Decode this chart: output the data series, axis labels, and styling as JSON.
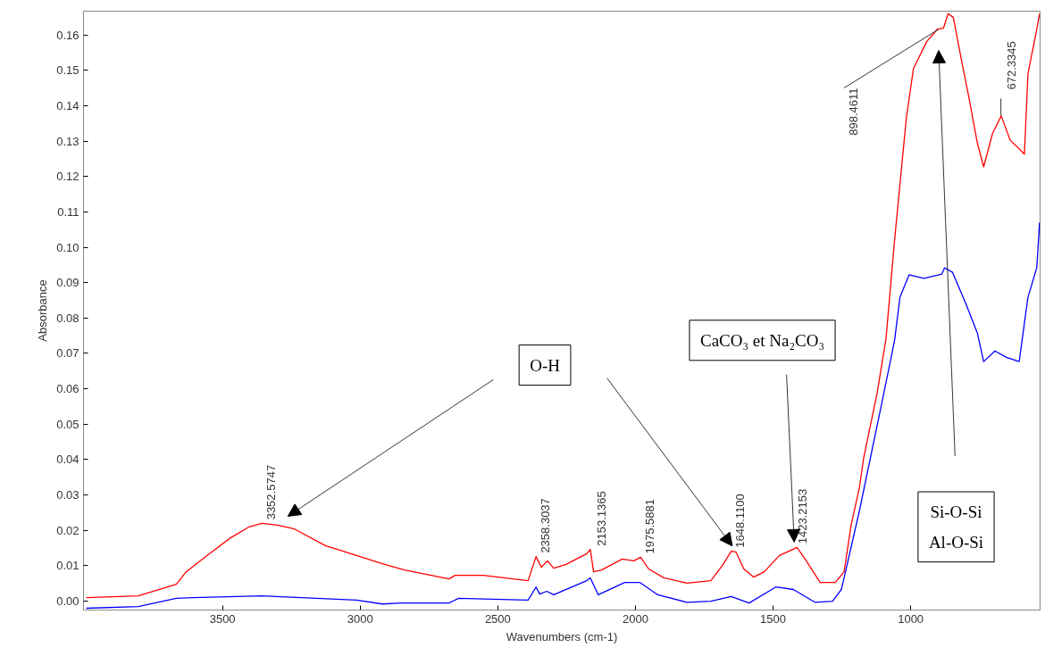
{
  "chart_data": {
    "type": "line",
    "xlabel": "Wavenumbers (cm-1)",
    "ylabel": "Absorbance",
    "xlim": [
      4005,
      530
    ],
    "xticks": [
      3500,
      3000,
      2500,
      2000,
      1500,
      1000
    ],
    "ylim": [
      -0.0025,
      0.1667
    ],
    "yticks": [
      {
        "value": 0,
        "label": "0.00"
      },
      {
        "value": 0.01,
        "label": "0.01"
      },
      {
        "value": 0.02,
        "label": "0.02"
      },
      {
        "value": 0.03,
        "label": "0.03"
      },
      {
        "value": 0.04,
        "label": "0.04"
      },
      {
        "value": 0.05,
        "label": "0.05"
      },
      {
        "value": 0.06,
        "label": "0.06"
      },
      {
        "value": 0.07,
        "label": "0.07"
      },
      {
        "value": 0.08,
        "label": "0.08"
      },
      {
        "value": 0.09,
        "label": "0.09"
      },
      {
        "value": 0.1,
        "label": "0.10"
      },
      {
        "value": 0.11,
        "label": "0.11"
      },
      {
        "value": 0.12,
        "label": "0.12"
      },
      {
        "value": 0.13,
        "label": "0.13"
      },
      {
        "value": 0.14,
        "label": "0.14"
      },
      {
        "value": 0.15,
        "label": "0.15"
      },
      {
        "value": 0.16,
        "label": "0.16"
      }
    ],
    "grid": false,
    "marker": "none",
    "line_style": "solid",
    "series": [
      {
        "color": "#ff0000",
        "x": [
          3995,
          3806,
          3668,
          3632,
          3565,
          3471,
          3403,
          3358,
          3300,
          3242,
          3126,
          3013,
          2919,
          2839,
          2677,
          2655,
          2552,
          2390,
          2361,
          2342,
          2319,
          2297,
          2252,
          2177,
          2164,
          2152,
          2123,
          2048,
          2006,
          1981,
          1952,
          1897,
          1813,
          1726,
          1684,
          1652,
          1635,
          1606,
          1571,
          1532,
          1477,
          1413,
          1381,
          1329,
          1274,
          1242,
          1216,
          1187,
          1171,
          1122,
          1090,
          1058,
          1016,
          990,
          942,
          903,
          881,
          864,
          845,
          816,
          790,
          758,
          735,
          703,
          671,
          639,
          606,
          587,
          574,
          542,
          532
        ],
        "values": [
          0.001,
          0.0015,
          0.0048,
          0.0083,
          0.0124,
          0.0179,
          0.021,
          0.022,
          0.0215,
          0.0205,
          0.0157,
          0.0129,
          0.0106,
          0.0088,
          0.0063,
          0.0073,
          0.0073,
          0.0058,
          0.0126,
          0.0096,
          0.0114,
          0.0093,
          0.0104,
          0.0134,
          0.0146,
          0.0083,
          0.0088,
          0.0119,
          0.0114,
          0.0124,
          0.0091,
          0.0066,
          0.0051,
          0.0058,
          0.0101,
          0.0141,
          0.0139,
          0.0091,
          0.0068,
          0.0083,
          0.0129,
          0.0152,
          0.0116,
          0.0053,
          0.0053,
          0.0083,
          0.0217,
          0.0318,
          0.0404,
          0.0588,
          0.074,
          0.1025,
          0.1364,
          0.1505,
          0.1581,
          0.1616,
          0.1619,
          0.166,
          0.1649,
          0.153,
          0.1429,
          0.1295,
          0.1227,
          0.1321,
          0.1371,
          0.1303,
          0.1278,
          0.1263,
          0.149,
          0.1616,
          0.166
        ]
      },
      {
        "color": "#0000ff",
        "x": [
          3995,
          3806,
          3668,
          3610,
          3358,
          3013,
          2919,
          2852,
          2677,
          2642,
          2390,
          2361,
          2348,
          2322,
          2297,
          2177,
          2164,
          2135,
          2039,
          1984,
          1919,
          1813,
          1726,
          1652,
          1587,
          1490,
          1426,
          1348,
          1284,
          1252,
          1242,
          1187,
          1106,
          1071,
          1058,
          1039,
          1006,
          952,
          887,
          877,
          848,
          800,
          758,
          735,
          694,
          652,
          606,
          574,
          542,
          532
        ],
        "values": [
          -0.002,
          -0.0015,
          0.0008,
          0.001,
          0.0015,
          0.0003,
          -0.0008,
          -0.0005,
          -0.0005,
          0.0008,
          0.0003,
          0.004,
          0.002,
          0.0028,
          0.0018,
          0.0058,
          0.0066,
          0.0018,
          0.0053,
          0.0053,
          0.0018,
          -0.0003,
          0.0,
          0.0013,
          -0.0005,
          0.004,
          0.0033,
          -0.0003,
          0.0,
          0.0033,
          0.0066,
          0.0253,
          0.0556,
          0.0689,
          0.074,
          0.0859,
          0.0922,
          0.0912,
          0.0924,
          0.0942,
          0.0929,
          0.0841,
          0.0758,
          0.0677,
          0.0707,
          0.0689,
          0.0677,
          0.0859,
          0.0942,
          0.107
        ]
      }
    ],
    "annotations": [
      {
        "text": "3352.5747",
        "x": 3352.5747,
        "y": 0.022
      },
      {
        "text": "2358.3037",
        "x": 2358.3037,
        "y": 0.0126
      },
      {
        "text": "2153.1365",
        "x": 2153.1365,
        "y": 0.0146
      },
      {
        "text": "1975.5881",
        "x": 1975.5881,
        "y": 0.0124
      },
      {
        "text": "1648.1100",
        "x": 1648.11,
        "y": 0.0141
      },
      {
        "text": "1423.2153",
        "x": 1423.2153,
        "y": 0.0152
      },
      {
        "text": "898.4611",
        "x": 898.4611,
        "y": 0.1616
      },
      {
        "text": "672.3345",
        "x": 672.3345,
        "y": 0.1371
      },
      "O-H",
      "CaCO₃ et Na₂CO₃",
      "Si-O-Si\nAl-O-Si"
    ]
  }
}
